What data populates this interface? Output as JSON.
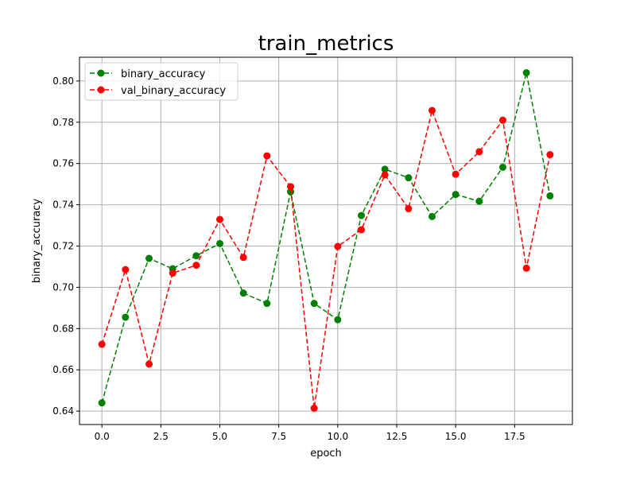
{
  "chart_data": {
    "type": "line",
    "title": "train_metrics",
    "xlabel": "epoch",
    "ylabel": "binary_accuracy",
    "xlim": [
      -0.95,
      19.95
    ],
    "ylim": [
      0.6335,
      0.8115
    ],
    "xticks": [
      0.0,
      2.5,
      5.0,
      7.5,
      10.0,
      12.5,
      15.0,
      17.5
    ],
    "xtick_labels": [
      "0.0",
      "2.5",
      "5.0",
      "7.5",
      "10.0",
      "12.5",
      "15.0",
      "17.5"
    ],
    "yticks": [
      0.64,
      0.66,
      0.68,
      0.7,
      0.72,
      0.74,
      0.76,
      0.78,
      0.8
    ],
    "ytick_labels": [
      "0.64",
      "0.66",
      "0.68",
      "0.70",
      "0.72",
      "0.74",
      "0.76",
      "0.78",
      "0.80"
    ],
    "grid": true,
    "legend_position": "top-left",
    "x": [
      0,
      1,
      2,
      3,
      4,
      5,
      6,
      7,
      8,
      9,
      10,
      11,
      12,
      13,
      14,
      15,
      16,
      17,
      18,
      19
    ],
    "series": [
      {
        "name": "binary_accuracy",
        "color": "#008000",
        "linestyle": "dashed",
        "marker": "circle",
        "values": [
          0.644,
          0.6855,
          0.714,
          0.709,
          0.7153,
          0.7212,
          0.6972,
          0.6922,
          0.7463,
          0.6922,
          0.6843,
          0.7348,
          0.7572,
          0.7531,
          0.7343,
          0.745,
          0.7417,
          0.7582,
          0.804,
          0.7443
        ]
      },
      {
        "name": "val_binary_accuracy",
        "color": "#ff0000",
        "linestyle": "dashed",
        "marker": "circle",
        "values": [
          0.6724,
          0.7086,
          0.6628,
          0.7069,
          0.7107,
          0.7329,
          0.7145,
          0.7637,
          0.7488,
          0.6414,
          0.7198,
          0.7279,
          0.7545,
          0.7381,
          0.7857,
          0.7548,
          0.7657,
          0.781,
          0.7093,
          0.7643
        ]
      }
    ]
  }
}
